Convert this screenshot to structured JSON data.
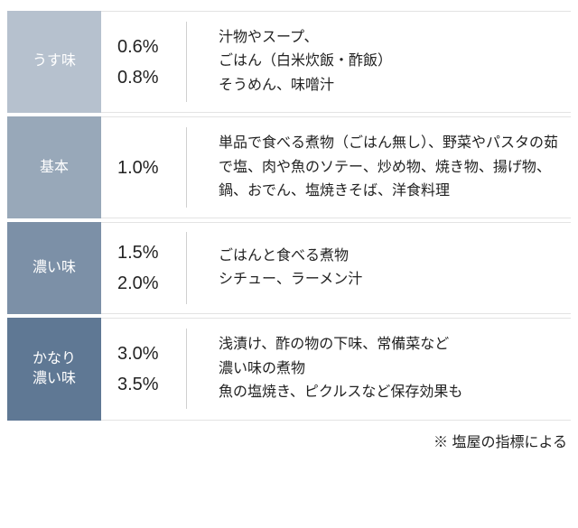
{
  "table": {
    "rows": [
      {
        "label": "うす味",
        "label_bg": "#b6c1ce",
        "percents": [
          "0.6%",
          "0.8%"
        ],
        "desc_lines": [
          "汁物やスープ、",
          "ごはん（白米炊飯・酢飯）",
          "そうめん、味噌汁"
        ]
      },
      {
        "label": "基本",
        "label_bg": "#98a8b9",
        "percents": [
          "1.0%"
        ],
        "desc_lines": [
          "単品で食べる煮物（ごはん無し）、野菜やパスタの茹で塩、肉や魚のソテー、炒め物、焼き物、揚げ物、鍋、おでん、塩焼きそば、洋食料理"
        ]
      },
      {
        "label": "濃い味",
        "label_bg": "#7c90a7",
        "percents": [
          "1.5%",
          "2.0%"
        ],
        "desc_lines": [
          "ごはんと食べる煮物",
          "シチュー、ラーメン汁"
        ]
      },
      {
        "label": "かなり\n濃い味",
        "label_bg": "#5f7894",
        "percents": [
          "3.0%",
          "3.5%"
        ],
        "desc_lines": [
          "浅漬け、酢の物の下味、常備菜など",
          "濃い味の煮物",
          "魚の塩焼き、ピクルスなど保存効果も"
        ]
      }
    ]
  },
  "note": "※ 塩屋の指標による"
}
